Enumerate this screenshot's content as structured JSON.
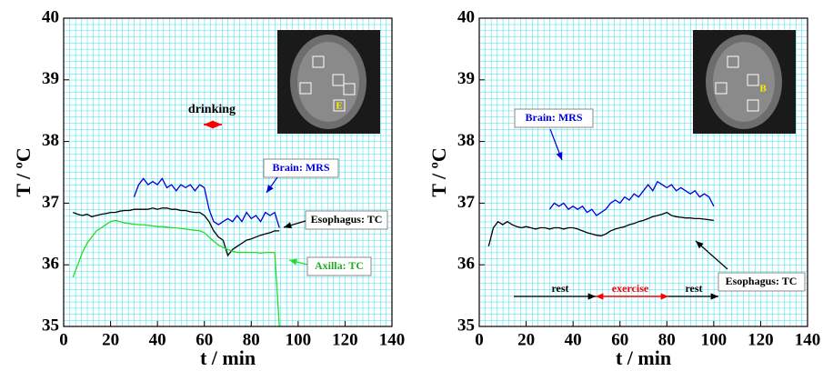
{
  "chart_data": [
    {
      "type": "line",
      "x_label": "t / min",
      "y_label": "T / ºC",
      "xlim": [
        0,
        140
      ],
      "ylim": [
        35,
        40
      ],
      "xticks": [
        0,
        20,
        40,
        60,
        80,
        100,
        120,
        140
      ],
      "yticks": [
        35,
        36,
        37,
        38,
        39,
        40
      ],
      "grid": true,
      "annotations": [
        "drinking",
        "Brain: MRS",
        "Esophagus: TC",
        "Axilla: TC",
        "E"
      ],
      "x": [
        4,
        6,
        8,
        10,
        12,
        14,
        16,
        18,
        20,
        22,
        24,
        26,
        28,
        30,
        32,
        34,
        36,
        38,
        40,
        42,
        44,
        46,
        48,
        50,
        52,
        54,
        56,
        58,
        60,
        62,
        64,
        66,
        68,
        70,
        72,
        74,
        76,
        78,
        80,
        82,
        84,
        86,
        88,
        90,
        92
      ],
      "series": [
        {
          "name": "Brain: MRS",
          "color": "#0000dd",
          "values": [
            null,
            null,
            null,
            null,
            null,
            null,
            null,
            null,
            null,
            null,
            null,
            null,
            null,
            37.1,
            37.3,
            37.4,
            37.3,
            37.35,
            37.3,
            37.4,
            37.25,
            37.3,
            37.2,
            37.3,
            37.25,
            37.3,
            37.2,
            37.3,
            37.25,
            36.9,
            36.7,
            36.65,
            36.7,
            36.75,
            36.7,
            36.8,
            36.7,
            36.85,
            36.75,
            36.8,
            36.7,
            36.85,
            36.8,
            36.85,
            36.6
          ]
        },
        {
          "name": "Esophagus: TC",
          "color": "#000000",
          "values": [
            36.85,
            36.82,
            36.8,
            36.82,
            36.78,
            36.8,
            36.82,
            36.83,
            36.85,
            36.85,
            36.87,
            36.88,
            36.88,
            36.9,
            36.9,
            36.9,
            36.9,
            36.92,
            36.9,
            36.92,
            36.92,
            36.9,
            36.9,
            36.88,
            36.88,
            36.86,
            36.85,
            36.85,
            36.8,
            36.7,
            36.55,
            36.45,
            36.4,
            36.15,
            36.25,
            36.3,
            36.35,
            36.4,
            36.42,
            36.45,
            36.48,
            36.5,
            36.52,
            36.55,
            36.55
          ]
        },
        {
          "name": "Axilla: TC",
          "color": "#22dd22",
          "values": [
            35.8,
            36.0,
            36.2,
            36.35,
            36.45,
            36.55,
            36.6,
            36.65,
            36.7,
            36.72,
            36.7,
            36.68,
            36.67,
            36.66,
            36.65,
            36.65,
            36.64,
            36.63,
            36.62,
            36.62,
            36.61,
            36.6,
            36.6,
            36.59,
            36.58,
            36.57,
            36.56,
            36.55,
            36.52,
            36.45,
            36.38,
            36.32,
            36.28,
            36.25,
            36.22,
            36.2,
            36.2,
            36.2,
            36.2,
            36.2,
            36.19,
            36.2,
            36.2,
            36.2,
            35.0
          ]
        }
      ]
    },
    {
      "type": "line",
      "x_label": "t / min",
      "y_label": "T / ºC",
      "xlim": [
        0,
        140
      ],
      "ylim": [
        35,
        40
      ],
      "xticks": [
        0,
        20,
        40,
        60,
        80,
        100,
        120,
        140
      ],
      "yticks": [
        35,
        36,
        37,
        38,
        39,
        40
      ],
      "grid": true,
      "annotations": [
        "Brain: MRS",
        "Esophagus: TC",
        "rest",
        "exercise",
        "rest",
        "B"
      ],
      "x": [
        4,
        6,
        8,
        10,
        12,
        14,
        16,
        18,
        20,
        22,
        24,
        26,
        28,
        30,
        32,
        34,
        36,
        38,
        40,
        42,
        44,
        46,
        48,
        50,
        52,
        54,
        56,
        58,
        60,
        62,
        64,
        66,
        68,
        70,
        72,
        74,
        76,
        78,
        80,
        82,
        84,
        86,
        88,
        90,
        92,
        94,
        96,
        98,
        100
      ],
      "series": [
        {
          "name": "Brain: MRS",
          "color": "#0000dd",
          "values": [
            null,
            null,
            null,
            null,
            null,
            null,
            null,
            null,
            null,
            null,
            null,
            null,
            null,
            36.9,
            37.0,
            36.95,
            37.0,
            36.9,
            36.95,
            36.9,
            36.95,
            36.85,
            36.9,
            36.8,
            36.85,
            36.9,
            37.0,
            37.05,
            37.0,
            37.1,
            37.05,
            37.15,
            37.1,
            37.2,
            37.3,
            37.2,
            37.35,
            37.3,
            37.25,
            37.3,
            37.2,
            37.25,
            37.2,
            37.15,
            37.2,
            37.1,
            37.15,
            37.1,
            36.95
          ]
        },
        {
          "name": "Esophagus: TC",
          "color": "#000000",
          "values": [
            36.3,
            36.6,
            36.7,
            36.65,
            36.7,
            36.65,
            36.62,
            36.6,
            36.62,
            36.6,
            36.58,
            36.6,
            36.6,
            36.58,
            36.6,
            36.6,
            36.58,
            36.6,
            36.6,
            36.58,
            36.55,
            36.52,
            36.5,
            36.48,
            36.47,
            36.5,
            36.55,
            36.58,
            36.6,
            36.62,
            36.65,
            36.67,
            36.7,
            36.72,
            36.75,
            36.78,
            36.8,
            36.82,
            36.85,
            36.8,
            36.78,
            36.77,
            36.76,
            36.76,
            36.75,
            36.75,
            36.74,
            36.73,
            36.72
          ]
        }
      ]
    }
  ]
}
